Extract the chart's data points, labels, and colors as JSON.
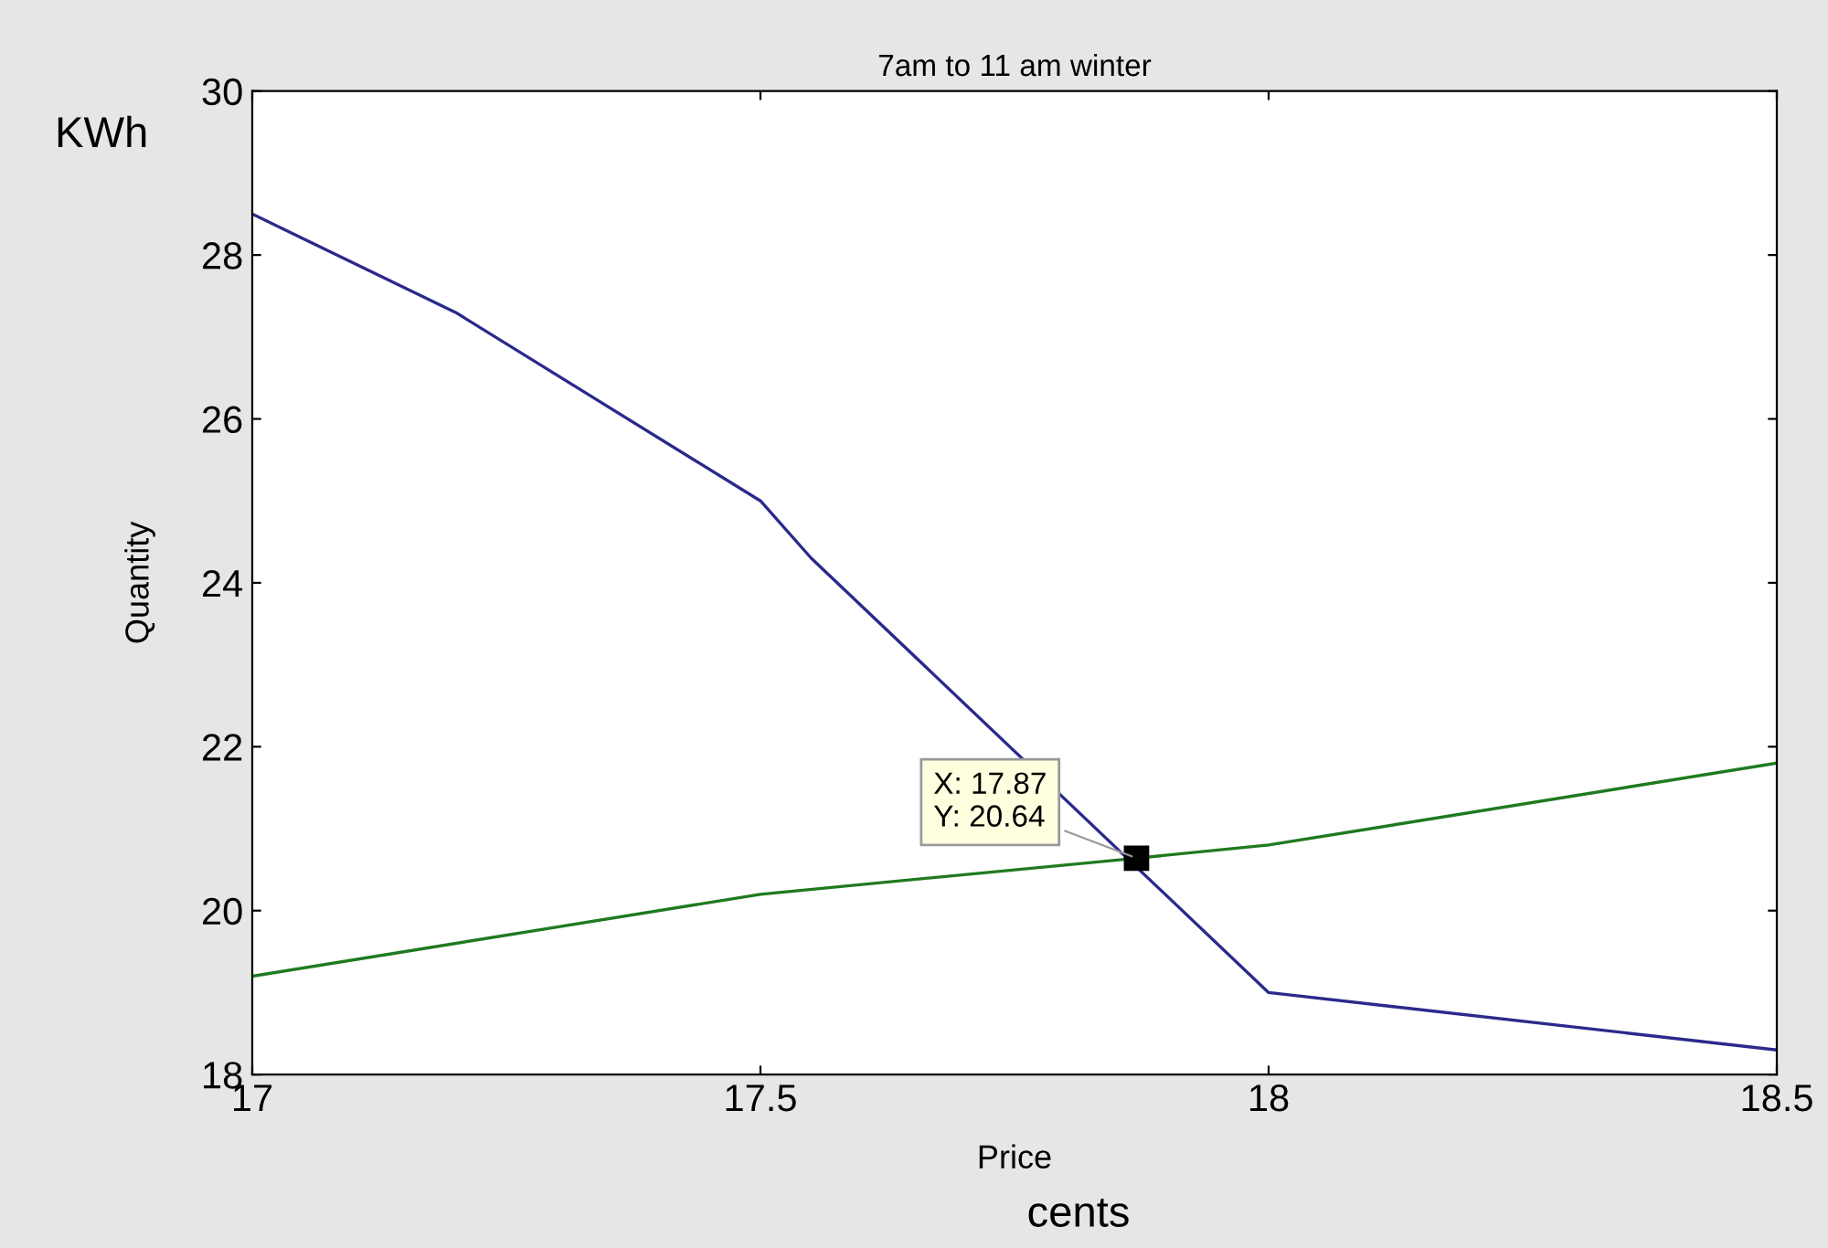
{
  "chart_data": {
    "type": "line",
    "title": "7am to 11 am winter",
    "xlabel": "Price",
    "ylabel": "Quantity",
    "series": [
      {
        "color": "#2a2a8c",
        "x": [
          17,
          17.2,
          17.5,
          17.55,
          18,
          18.5
        ],
        "values": [
          28.5,
          27.3,
          25.0,
          24.3,
          19.0,
          18.3
        ]
      },
      {
        "color": "#1f7a1f",
        "x": [
          17,
          17.5,
          17.87,
          18,
          18.5
        ],
        "values": [
          19.2,
          20.2,
          20.64,
          20.8,
          21.8
        ]
      }
    ],
    "xlim": [
      17,
      18.5
    ],
    "xticks": [
      17,
      17.5,
      18,
      18.5
    ],
    "ylim": [
      18,
      30
    ],
    "yticks": [
      18,
      20,
      22,
      24,
      26,
      28,
      30
    ],
    "grid": false,
    "marker": "none",
    "line_style": "solid",
    "annotations": [
      "KWh",
      "cents",
      {
        "text": "X: 17.87\nY: 20.64",
        "x": 17.87,
        "y": 20.64
      }
    ]
  }
}
